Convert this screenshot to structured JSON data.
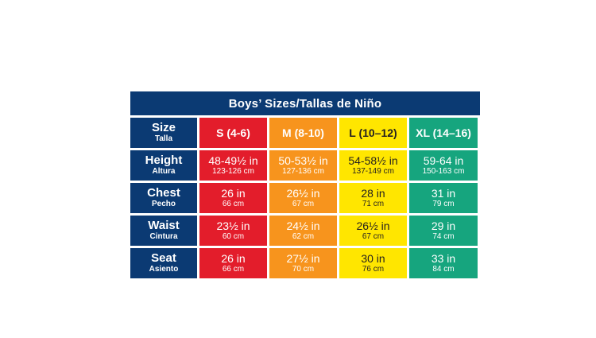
{
  "title": "Boys’ Sizes/Tallas de Niño",
  "colors": {
    "header_bg": "#0b3a73",
    "s": "#e31d2b",
    "m": "#f7941d",
    "l": "#ffe600",
    "xl": "#16a57e"
  },
  "header_row": {
    "label": "Size",
    "sublabel": "Talla",
    "sizes": [
      "S (4-6)",
      "M (8-10)",
      "L (10–12)",
      "XL (14–16)"
    ]
  },
  "rows": [
    {
      "label": "Height",
      "sublabel": "Altura",
      "values": [
        {
          "main": "48-49½ in",
          "sub": "123-126 cm"
        },
        {
          "main": "50-53½ in",
          "sub": "127-136 cm"
        },
        {
          "main": "54-58½ in",
          "sub": "137-149 cm"
        },
        {
          "main": "59-64 in",
          "sub": "150-163 cm"
        }
      ]
    },
    {
      "label": "Chest",
      "sublabel": "Pecho",
      "values": [
        {
          "main": "26 in",
          "sub": "66 cm"
        },
        {
          "main": "26½ in",
          "sub": "67 cm"
        },
        {
          "main": "28 in",
          "sub": "71 cm"
        },
        {
          "main": "31 in",
          "sub": "79 cm"
        }
      ]
    },
    {
      "label": "Waist",
      "sublabel": "Cintura",
      "values": [
        {
          "main": "23½ in",
          "sub": "60 cm"
        },
        {
          "main": "24½ in",
          "sub": "62 cm"
        },
        {
          "main": "26½ in",
          "sub": "67 cm"
        },
        {
          "main": "29 in",
          "sub": "74 cm"
        }
      ]
    },
    {
      "label": "Seat",
      "sublabel": "Asiento",
      "values": [
        {
          "main": "26 in",
          "sub": "66 cm"
        },
        {
          "main": "27½ in",
          "sub": "70 cm"
        },
        {
          "main": "30 in",
          "sub": "76 cm"
        },
        {
          "main": "33 in",
          "sub": "84 cm"
        }
      ]
    }
  ]
}
